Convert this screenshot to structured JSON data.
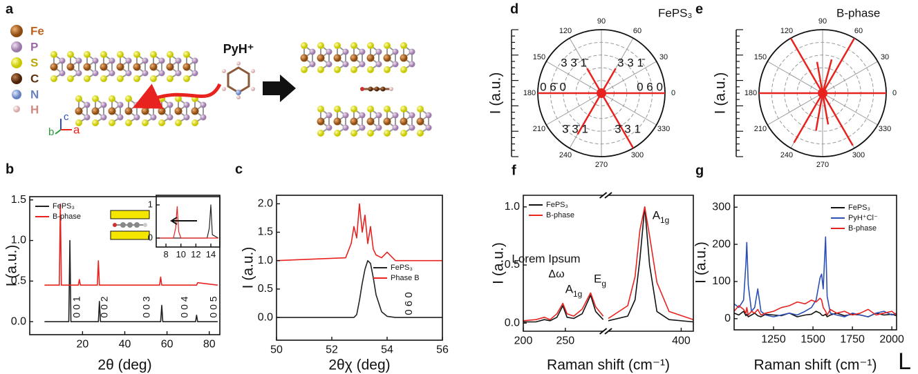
{
  "diagram": {
    "label": "a",
    "elements": [
      "Fe",
      "P",
      "S",
      "C",
      "N",
      "H"
    ],
    "reagent": "PyH⁺",
    "axes": [
      "c",
      "b",
      "a"
    ]
  },
  "corner": "L",
  "chart_data": [
    {
      "type": "line",
      "label": "b",
      "xlabel": "2θ (deg)",
      "ylabel": "I (a.u.)",
      "xlim": [
        -5,
        85
      ],
      "xticks": [
        20,
        40,
        60,
        80
      ],
      "ylim": [
        -0.16,
        1.54
      ],
      "yticks": [
        {
          "value": 0,
          "label": "0.0"
        },
        {
          "value": 0.5,
          "label": "0.5"
        },
        {
          "value": 1,
          "label": "1.0"
        },
        {
          "value": 1.5,
          "label": "1.5"
        }
      ],
      "legend": "upper left",
      "annotations": [
        "0 0 1",
        "0 0 2",
        "0 0 3",
        "0 0 4",
        "0 0 5"
      ],
      "x": [
        2,
        9,
        9.5,
        10,
        13.5,
        14,
        14.5,
        18,
        18.5,
        19,
        27,
        27.5,
        28,
        28.5,
        56.5,
        57,
        57.5,
        58,
        73.5,
        74,
        74.5,
        84
      ],
      "series": [
        {
          "name": "FePS₃",
          "color": "#222222",
          "values": [
            0,
            0,
            0,
            0,
            0,
            1.0,
            0,
            0,
            0,
            0,
            0,
            0,
            0.25,
            0,
            0,
            0,
            0.2,
            0,
            0,
            0.08,
            0,
            0
          ]
        },
        {
          "name": "B-phase",
          "color": "#e8221f",
          "values": [
            0.45,
            0.45,
            1.45,
            0.45,
            0.45,
            0.45,
            0.45,
            0.45,
            0.52,
            0.45,
            0.45,
            0.75,
            0.45,
            0.45,
            0.45,
            0.55,
            0.45,
            0.45,
            0.45,
            0.45,
            0.48,
            0.45
          ]
        }
      ]
    },
    {
      "type": "line",
      "xlim": [
        6.7,
        15.2
      ],
      "xticks": [
        8,
        10,
        12,
        14
      ],
      "ylim": [
        -0.27,
        1.29
      ],
      "yticks": [
        0,
        1
      ],
      "x": [
        7,
        9,
        9.3,
        9.5,
        9.7,
        10,
        13,
        13.5,
        13.8,
        14,
        14.2,
        15
      ],
      "series": [
        {
          "color": "#222222",
          "values": [
            0,
            0,
            0,
            0,
            0,
            0,
            0,
            0,
            0.3,
            1.0,
            0.1,
            0
          ]
        },
        {
          "color": "#e8221f",
          "values": [
            0,
            0,
            0.3,
            0.95,
            0.2,
            0,
            0,
            0,
            0,
            0,
            0,
            0
          ]
        }
      ]
    },
    {
      "type": "line",
      "label": "c",
      "xlabel": "2θχ (deg)",
      "ylabel": "I (a.u.)",
      "xlim": [
        50,
        56
      ],
      "xticks": [
        50,
        52,
        54,
        56
      ],
      "ylim": [
        -0.4,
        2.15
      ],
      "yticks": [
        {
          "value": 0,
          "label": "0.0"
        },
        {
          "value": 0.5,
          "label": "0.5"
        },
        {
          "value": 1,
          "label": "1.0"
        },
        {
          "value": 1.5,
          "label": "1.5"
        },
        {
          "value": 2,
          "label": "2.0"
        }
      ],
      "legend": "center right",
      "annotations": [
        "0 6 0"
      ],
      "x": [
        50,
        52.5,
        52.7,
        52.8,
        52.9,
        53.0,
        53.1,
        53.2,
        53.3,
        53.4,
        53.5,
        53.6,
        53.8,
        54,
        54.3,
        56
      ],
      "series": [
        {
          "name": "FePS₃",
          "color": "#222222",
          "values": [
            0,
            0,
            0,
            0,
            0.05,
            0.3,
            0.6,
            0.85,
            1.0,
            0.95,
            0.7,
            0.4,
            0.1,
            0.02,
            0,
            0
          ]
        },
        {
          "name": "Phase B",
          "color": "#e8221f",
          "values": [
            1.0,
            1.05,
            1.3,
            1.6,
            1.4,
            2.0,
            1.5,
            1.8,
            1.3,
            1.6,
            1.2,
            1.1,
            1.05,
            1.15,
            1.0,
            1.0
          ]
        }
      ]
    },
    {
      "type": "polar",
      "label": "d",
      "title": "FePS₃",
      "ylabel": "I (a.u.)",
      "rlim": [
        0,
        1
      ],
      "thetaticks": [
        0,
        30,
        60,
        90,
        120,
        150,
        180,
        210,
        240,
        270,
        300,
        330
      ],
      "annotations": [
        "3 3̄ 1̄",
        "3 3 1̄",
        "0 6̄ 0",
        "0 6 0",
        "3̄ 3̄ 1",
        "3̄ 3 1"
      ],
      "series": [
        {
          "color": "#e8221f",
          "theta": [
            0,
            60,
            120,
            180,
            240,
            300
          ],
          "values": [
            1,
            0.45,
            0.45,
            1,
            0.75,
            1
          ]
        }
      ]
    },
    {
      "type": "polar",
      "label": "e",
      "title": "B-phase",
      "ylabel": "I (a.u.)",
      "rlim": [
        0,
        1
      ],
      "thetaticks": [
        0,
        30,
        60,
        90,
        120,
        150,
        180,
        210,
        240,
        270,
        300,
        330
      ],
      "series": [
        {
          "color": "#e8221f",
          "theta": [
            0,
            60,
            75,
            100,
            120,
            180,
            240,
            260,
            280,
            300
          ],
          "values": [
            1,
            1,
            0.55,
            0.5,
            1,
            1,
            0.9,
            0.6,
            0.5,
            0.95
          ]
        }
      ]
    },
    {
      "type": "line",
      "label": "f",
      "xlabel": "Raman shift (cm⁻¹)",
      "ylabel": "I (a.u.)",
      "xlim": [
        200,
        405
      ],
      "xbreak": [
        295,
        370
      ],
      "xticks": [
        200,
        250,
        400
      ],
      "ylim": [
        -0.07,
        1.1
      ],
      "yticks": [
        {
          "value": 0,
          "label": "0.0"
        },
        {
          "value": 0.5,
          "label": "0.5"
        },
        {
          "value": 1,
          "label": "1.0"
        }
      ],
      "legend": "upper left",
      "annotations": [
        "Lorem Ipsum",
        "Δω",
        "A1g",
        "Eg",
        "A1g"
      ],
      "x": [
        200,
        215,
        225,
        232,
        240,
        247,
        252,
        260,
        270,
        280,
        286,
        295,
        370,
        378,
        381,
        383,
        385,
        387,
        390,
        395,
        405
      ],
      "series": [
        {
          "name": "FePS₃",
          "color": "#111111",
          "values": [
            0.01,
            0.01,
            0.03,
            0.02,
            0.05,
            0.15,
            0.05,
            0.04,
            0.08,
            0.24,
            0.1,
            0.03,
            0.02,
            0.06,
            0.2,
            0.55,
            1.0,
            0.5,
            0.1,
            0.03,
            0.01
          ]
        },
        {
          "name": "B-phase",
          "color": "#e8221f",
          "values": [
            0.02,
            0.03,
            0.05,
            0.03,
            0.08,
            0.17,
            0.08,
            0.06,
            0.12,
            0.26,
            0.14,
            0.06,
            0.04,
            0.15,
            0.4,
            0.8,
            1.0,
            0.75,
            0.35,
            0.1,
            0.03
          ]
        }
      ]
    },
    {
      "type": "line",
      "label": "g",
      "xlabel": "Raman shift (cm⁻¹)",
      "ylabel": "I (a.u.)",
      "xlim": [
        1000,
        2030
      ],
      "xticks": [
        1250,
        1500,
        1750,
        2000
      ],
      "ylim": [
        -30,
        332
      ],
      "yticks": [
        0,
        100,
        200,
        300
      ],
      "legend": "upper right",
      "x": [
        1000,
        1030,
        1060,
        1075,
        1080,
        1090,
        1110,
        1130,
        1150,
        1170,
        1200,
        1250,
        1300,
        1350,
        1400,
        1450,
        1490,
        1520,
        1545,
        1555,
        1565,
        1580,
        1590,
        1610,
        1650,
        1700,
        1750,
        1800,
        1850,
        1900,
        1950,
        2000,
        2030
      ],
      "series": [
        {
          "name": "FePS₃",
          "color": "#111111",
          "values": [
            15,
            10,
            20,
            8,
            12,
            5,
            10,
            15,
            8,
            5,
            12,
            10,
            8,
            15,
            5,
            10,
            12,
            20,
            15,
            10,
            8,
            12,
            5,
            10,
            15,
            8,
            12,
            10,
            5,
            15,
            10,
            12,
            8
          ]
        },
        {
          "name": "PyH⁺Cl⁻",
          "color": "#2b4fb3",
          "values": [
            40,
            30,
            50,
            150,
            205,
            90,
            20,
            30,
            80,
            20,
            10,
            5,
            10,
            15,
            10,
            20,
            30,
            50,
            110,
            120,
            80,
            220,
            60,
            15,
            10,
            5,
            15,
            10,
            5,
            15,
            20,
            10,
            15
          ]
        },
        {
          "name": "B-phase",
          "color": "#e8221f",
          "values": [
            20,
            35,
            25,
            15,
            30,
            10,
            20,
            15,
            25,
            10,
            15,
            20,
            30,
            35,
            45,
            40,
            50,
            45,
            55,
            50,
            30,
            20,
            10,
            25,
            15,
            20,
            10,
            15,
            25,
            10,
            15,
            20,
            10
          ]
        }
      ]
    }
  ]
}
